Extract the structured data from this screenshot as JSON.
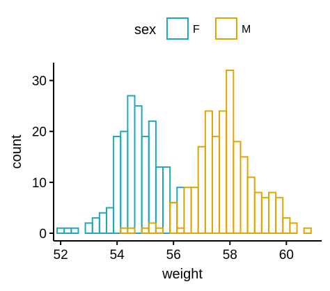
{
  "chart_data": {
    "type": "bar",
    "subtype": "histogram",
    "xlabel": "weight",
    "ylabel": "count",
    "xlim": [
      51.75,
      61.25
    ],
    "ylim": [
      -1.5,
      33.5
    ],
    "xticks": [
      52,
      54,
      56,
      58,
      60
    ],
    "yticks": [
      0,
      10,
      20,
      30
    ],
    "grid": false,
    "legend": {
      "title": "sex",
      "position": "top"
    },
    "bin_width": 0.25,
    "series": [
      {
        "name": "F",
        "color": "#1FA8B8",
        "bins": [
          {
            "x": 52.0,
            "count": 1
          },
          {
            "x": 52.25,
            "count": 1
          },
          {
            "x": 52.5,
            "count": 1
          },
          {
            "x": 52.75,
            "count": 0
          },
          {
            "x": 53.0,
            "count": 2
          },
          {
            "x": 53.25,
            "count": 3
          },
          {
            "x": 53.5,
            "count": 4
          },
          {
            "x": 53.75,
            "count": 5
          },
          {
            "x": 54.0,
            "count": 19
          },
          {
            "x": 54.25,
            "count": 20
          },
          {
            "x": 54.5,
            "count": 27
          },
          {
            "x": 54.75,
            "count": 25
          },
          {
            "x": 55.0,
            "count": 19
          },
          {
            "x": 55.25,
            "count": 22
          },
          {
            "x": 55.5,
            "count": 13
          },
          {
            "x": 55.75,
            "count": 13
          },
          {
            "x": 56.0,
            "count": 6
          },
          {
            "x": 56.25,
            "count": 9
          },
          {
            "x": 56.5,
            "count": 0
          },
          {
            "x": 56.75,
            "count": 0
          },
          {
            "x": 57.0,
            "count": 0
          }
        ]
      },
      {
        "name": "M",
        "color": "#E0A500",
        "bins": [
          {
            "x": 53.75,
            "count": 0
          },
          {
            "x": 54.0,
            "count": 0
          },
          {
            "x": 54.25,
            "count": 1
          },
          {
            "x": 54.5,
            "count": 1
          },
          {
            "x": 54.75,
            "count": 0
          },
          {
            "x": 55.0,
            "count": 1
          },
          {
            "x": 55.25,
            "count": 2
          },
          {
            "x": 55.5,
            "count": 1
          },
          {
            "x": 55.75,
            "count": 0
          },
          {
            "x": 56.0,
            "count": 6
          },
          {
            "x": 56.25,
            "count": 1
          },
          {
            "x": 56.5,
            "count": 9
          },
          {
            "x": 56.75,
            "count": 9
          },
          {
            "x": 57.0,
            "count": 17
          },
          {
            "x": 57.25,
            "count": 24
          },
          {
            "x": 57.5,
            "count": 19
          },
          {
            "x": 57.75,
            "count": 24
          },
          {
            "x": 58.0,
            "count": 32
          },
          {
            "x": 58.25,
            "count": 18
          },
          {
            "x": 58.5,
            "count": 15
          },
          {
            "x": 58.75,
            "count": 11
          },
          {
            "x": 59.0,
            "count": 8
          },
          {
            "x": 59.25,
            "count": 7
          },
          {
            "x": 59.5,
            "count": 8
          },
          {
            "x": 59.75,
            "count": 7
          },
          {
            "x": 60.0,
            "count": 3
          },
          {
            "x": 60.25,
            "count": 2
          },
          {
            "x": 60.5,
            "count": 0
          },
          {
            "x": 60.75,
            "count": 1
          }
        ]
      }
    ]
  }
}
